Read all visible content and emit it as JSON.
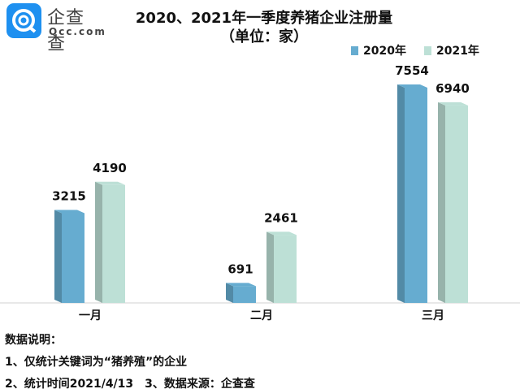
{
  "logo": {
    "cn": "企查查",
    "en": "Qcc.com"
  },
  "chart_data": {
    "type": "bar",
    "title": "2020、2021年一季度养猪企业注册量",
    "subtitle": "（单位：家）",
    "categories": [
      "一月",
      "二月",
      "三月"
    ],
    "series": [
      {
        "name": "2020年",
        "values": [
          3215,
          691,
          7554
        ],
        "color": "#66acd0"
      },
      {
        "name": "2021年",
        "values": [
          4190,
          2461,
          6940
        ],
        "color": "#bde0d6"
      }
    ],
    "ylim": [
      0,
      7554
    ],
    "legend": "top-right",
    "grid": false
  },
  "notes": [
    "数据说明：",
    "1、仅统计关键词为“猪养殖”的企业",
    "2、统计时间2021/4/13　3、数据来源：企查查"
  ]
}
